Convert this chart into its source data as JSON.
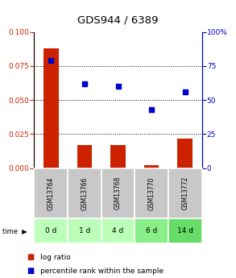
{
  "title": "GDS944 / 6389",
  "samples": [
    "GSM13764",
    "GSM13766",
    "GSM13768",
    "GSM13770",
    "GSM13772"
  ],
  "time_labels": [
    "0 d",
    "1 d",
    "4 d",
    "6 d",
    "14 d"
  ],
  "log_ratio": [
    0.088,
    0.017,
    0.017,
    0.002,
    0.022
  ],
  "percentile": [
    79,
    62,
    60,
    43,
    56
  ],
  "bar_color": "#cc2200",
  "scatter_color": "#0000cc",
  "left_ylim": [
    0,
    0.1
  ],
  "right_ylim": [
    0,
    100
  ],
  "left_yticks": [
    0,
    0.025,
    0.05,
    0.075,
    0.1
  ],
  "right_yticks": [
    0,
    25,
    50,
    75,
    100
  ],
  "sample_bg": "#c8c8c8",
  "time_bg_colors": [
    "#bbffbb",
    "#bbffbb",
    "#bbffbb",
    "#88ee88",
    "#66dd66"
  ],
  "title_fontsize": 9.5,
  "tick_fontsize": 6.5,
  "label_fontsize": 6.5,
  "legend_fontsize": 6.5,
  "sample_fontsize": 5.5
}
